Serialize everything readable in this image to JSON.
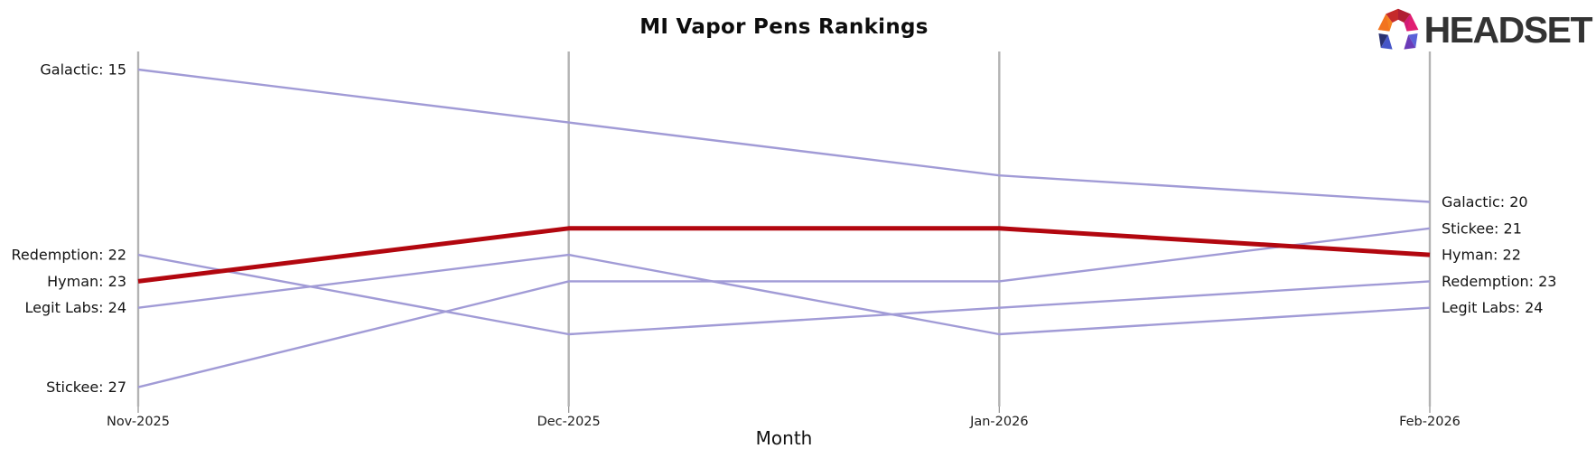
{
  "header": {
    "title": "MI Vapor Pens Rankings"
  },
  "logo": {
    "text": "HEADSET"
  },
  "xaxis": {
    "label": "Month"
  },
  "chart_data": {
    "type": "line",
    "variant": "bump-rank-chart",
    "title": "MI Vapor Pens Rankings",
    "xlabel": "Month",
    "ylabel": "",
    "y_meaning": "brand rank (smaller rank drawn higher on axis)",
    "grid": false,
    "legend": "none (series labeled at line endpoints)",
    "categories": [
      "Nov-2025",
      "Dec-2025",
      "Jan-2026",
      "Feb-2026"
    ],
    "rank_range": [
      15,
      27
    ],
    "axis_color": "#b3b3b3",
    "line_color_default": "#a19bd6",
    "line_color_highlight": "#b2070f",
    "series": [
      {
        "name": "Galactic",
        "values": [
          15,
          17,
          19,
          20
        ],
        "label_left": "Galactic: 15",
        "label_right": "Galactic: 20",
        "color": "#a19bd6",
        "highlight": false
      },
      {
        "name": "Redemption",
        "values": [
          22,
          25,
          24,
          23
        ],
        "label_left": "Redemption: 22",
        "label_right": "Redemption: 23",
        "color": "#a19bd6",
        "highlight": false
      },
      {
        "name": "Hyman",
        "values": [
          23,
          21,
          21,
          22
        ],
        "label_left": "Hyman: 23",
        "label_right": "Hyman: 22",
        "color": "#b2070f",
        "highlight": true
      },
      {
        "name": "Legit Labs",
        "values": [
          24,
          22,
          25,
          24
        ],
        "label_left": "Legit Labs: 24",
        "label_right": "Legit Labs: 24",
        "color": "#a19bd6",
        "highlight": false
      },
      {
        "name": "Stickee",
        "values": [
          27,
          23,
          23,
          21
        ],
        "label_left": "Stickee: 27",
        "label_right": "Stickee: 21",
        "color": "#a19bd6",
        "highlight": false
      }
    ]
  }
}
